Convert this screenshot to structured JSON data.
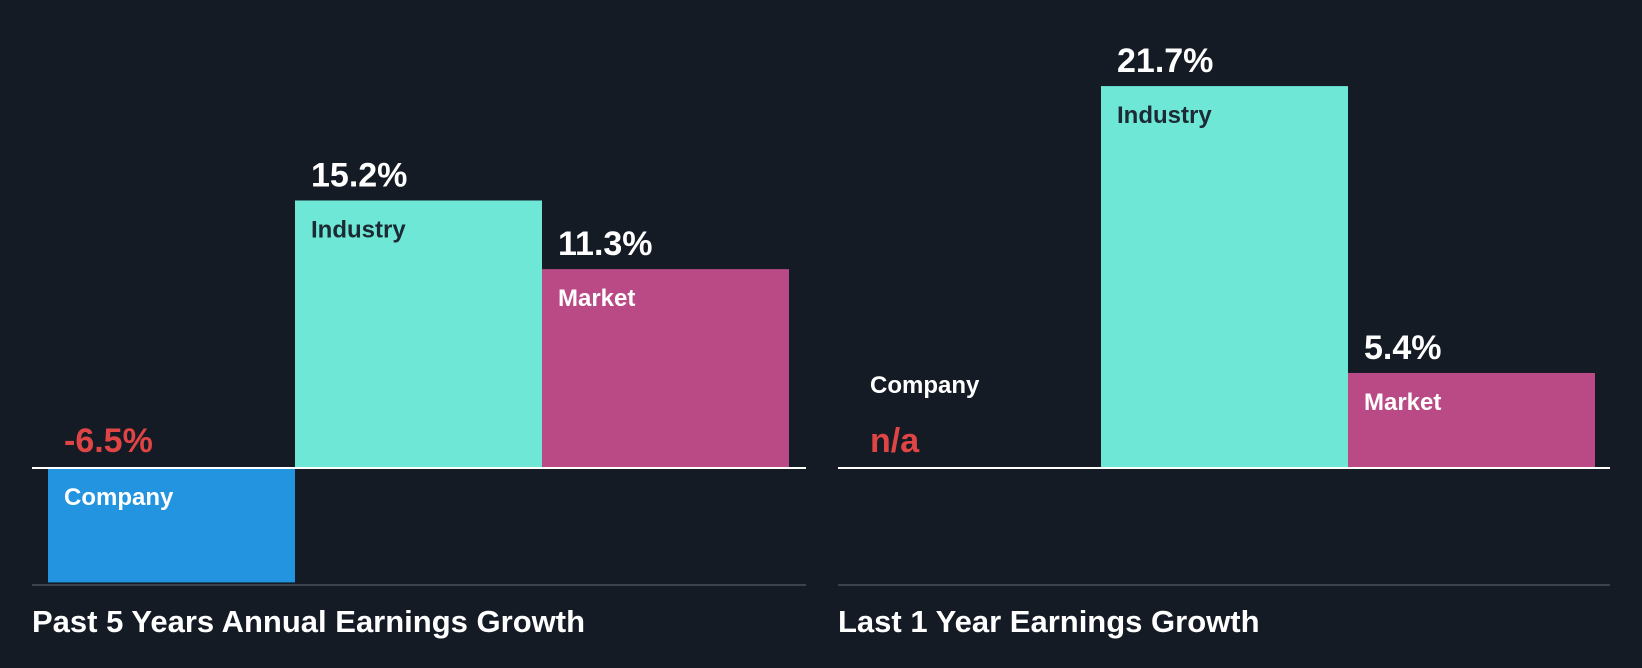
{
  "colors": {
    "background": "#151b24",
    "company": "#2394e0",
    "industry": "#6ee7d6",
    "market": "#b94a86",
    "negative_text": "#e04545",
    "value_text": "#ffffff",
    "baseline": "#ffffff",
    "bottom_rule": "#3c434d",
    "industry_label_text": "#1b2a33",
    "light_label_text": "#ffffff"
  },
  "chart_data": [
    {
      "type": "bar",
      "title": "Past 5 Years Annual Earnings Growth",
      "categories": [
        "Company",
        "Industry",
        "Market"
      ],
      "values": [
        -6.5,
        15.2,
        11.3
      ],
      "value_labels": [
        "-6.5%",
        "15.2%",
        "11.3%"
      ],
      "ylim": [
        -6.5,
        15.2
      ],
      "grid": false,
      "legend": "none"
    },
    {
      "type": "bar",
      "title": "Last 1 Year Earnings Growth",
      "categories": [
        "Company",
        "Industry",
        "Market"
      ],
      "values": [
        null,
        21.7,
        5.4
      ],
      "value_labels": [
        "n/a",
        "21.7%",
        "5.4%"
      ],
      "ylim": [
        -6.5,
        21.7
      ],
      "grid": false,
      "legend": "none"
    }
  ]
}
